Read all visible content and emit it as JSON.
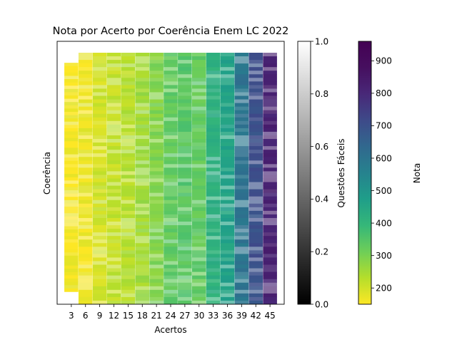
{
  "chart_data": [
    {
      "type": "heatmap",
      "title": "Nota por Acerto por Coerência Enem LC 2022",
      "xlabel": "Acertos",
      "ylabel": "Coerência",
      "x_ticks": [
        "3",
        "6",
        "9",
        "12",
        "15",
        "18",
        "21",
        "24",
        "27",
        "30",
        "33",
        "36",
        "39",
        "42",
        "45"
      ],
      "y_ticks": [],
      "grid": false,
      "columns": [
        {
          "acertos": 3,
          "nota_mean": 160,
          "fill_top": 0.04,
          "fill_bottom": 0.95
        },
        {
          "acertos": 6,
          "nota_mean": 170,
          "fill_top": 0.0,
          "fill_bottom": 1.0
        },
        {
          "acertos": 9,
          "nota_mean": 200,
          "fill_top": 0.0,
          "fill_bottom": 1.0
        },
        {
          "acertos": 12,
          "nota_mean": 215,
          "fill_top": 0.0,
          "fill_bottom": 1.0
        },
        {
          "acertos": 15,
          "nota_mean": 230,
          "fill_top": 0.0,
          "fill_bottom": 1.0
        },
        {
          "acertos": 18,
          "nota_mean": 255,
          "fill_top": 0.0,
          "fill_bottom": 1.0
        },
        {
          "acertos": 21,
          "nota_mean": 290,
          "fill_top": 0.0,
          "fill_bottom": 1.0
        },
        {
          "acertos": 24,
          "nota_mean": 330,
          "fill_top": 0.0,
          "fill_bottom": 1.0
        },
        {
          "acertos": 27,
          "nota_mean": 345,
          "fill_top": 0.0,
          "fill_bottom": 1.0
        },
        {
          "acertos": 30,
          "nota_mean": 330,
          "fill_top": 0.0,
          "fill_bottom": 1.0
        },
        {
          "acertos": 33,
          "nota_mean": 420,
          "fill_top": 0.0,
          "fill_bottom": 1.0
        },
        {
          "acertos": 36,
          "nota_mean": 460,
          "fill_top": 0.0,
          "fill_bottom": 1.0
        },
        {
          "acertos": 39,
          "nota_mean": 600,
          "fill_top": 0.0,
          "fill_bottom": 1.0
        },
        {
          "acertos": 42,
          "nota_mean": 700,
          "fill_top": 0.0,
          "fill_bottom": 1.0
        },
        {
          "acertos": 45,
          "nota_mean": 820,
          "fill_top": 0.0,
          "fill_bottom": 1.0
        }
      ],
      "colorbars": [
        {
          "label": "Questões Fáceis",
          "colormap": "gray",
          "range": [
            0.0,
            1.0
          ],
          "ticks": [
            "0.0",
            "0.2",
            "0.4",
            "0.6",
            "0.8",
            "1.0"
          ]
        },
        {
          "label": "Nota",
          "colormap": "viridis_r",
          "range": [
            150,
            960
          ],
          "ticks": [
            "200",
            "300",
            "400",
            "500",
            "600",
            "700",
            "800",
            "900"
          ]
        }
      ]
    }
  ]
}
